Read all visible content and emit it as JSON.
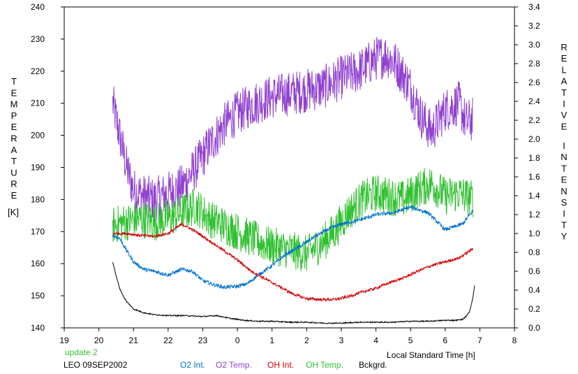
{
  "chart_data": {
    "type": "line",
    "left_axis_label": [
      "T",
      "E",
      "M",
      "P",
      "E",
      "R",
      "A",
      "T",
      "U",
      "R",
      "E"
    ],
    "left_axis_unit": "[K]",
    "right_axis_label_1": [
      "R",
      "E",
      "L",
      "A",
      "T",
      "I",
      "V",
      "E"
    ],
    "right_axis_label_2": [
      "I",
      "N",
      "T",
      "E",
      "N",
      "S",
      "I",
      "T",
      "Y"
    ],
    "xlabel": "Local Standard Time [h]",
    "update_text": "update 2",
    "station_text": "LEO 09SEP2002",
    "x_ticks": [
      "19",
      "20",
      "21",
      "22",
      "23",
      "0",
      "1",
      "2",
      "3",
      "4",
      "5",
      "6",
      "7",
      "8"
    ],
    "xlim": [
      19,
      32
    ],
    "y_left_ticks": [
      "140",
      "150",
      "160",
      "170",
      "180",
      "190",
      "200",
      "210",
      "220",
      "230",
      "240"
    ],
    "ylim_left": [
      140,
      240
    ],
    "y_right_ticks": [
      "0.0",
      "0.2",
      "0.4",
      "0.6",
      "0.8",
      "1.0",
      "1.2",
      "1.4",
      "1.6",
      "1.8",
      "2.0",
      "2.2",
      "2.4",
      "2.6",
      "2.8",
      "3.0",
      "3.2",
      "3.4"
    ],
    "ylim_right": [
      0,
      3.4
    ],
    "grid": false,
    "series": [
      {
        "name": "O2 Int.",
        "axis": "right",
        "color": "#0070d0",
        "noise": 0.02,
        "x": [
          20.4,
          20.6,
          20.8,
          21.0,
          21.3,
          21.6,
          22.0,
          22.4,
          22.7,
          23.0,
          23.3,
          23.6,
          24.0,
          24.3,
          24.6,
          25.0,
          25.4,
          25.8,
          26.2,
          26.6,
          27.0,
          27.5,
          28.0,
          28.5,
          29.0,
          29.5,
          30.0,
          30.5,
          30.8
        ],
        "values": [
          0.98,
          0.95,
          0.82,
          0.7,
          0.62,
          0.6,
          0.56,
          0.62,
          0.6,
          0.5,
          0.46,
          0.43,
          0.44,
          0.47,
          0.56,
          0.66,
          0.78,
          0.86,
          0.96,
          1.04,
          1.1,
          1.14,
          1.2,
          1.22,
          1.28,
          1.22,
          1.04,
          1.1,
          1.24
        ]
      },
      {
        "name": "O2 Temp.",
        "axis": "left",
        "color": "#9040d0",
        "noise": 7,
        "x": [
          20.4,
          20.6,
          20.8,
          21.0,
          21.3,
          21.6,
          22.0,
          22.4,
          22.8,
          23.2,
          23.6,
          24.0,
          24.5,
          25.0,
          25.5,
          26.0,
          26.5,
          27.0,
          27.5,
          28.0,
          28.3,
          28.6,
          29.0,
          29.3,
          29.6,
          30.0,
          30.4,
          30.6,
          30.8
        ],
        "values": [
          210,
          200,
          190,
          183,
          181,
          180,
          182,
          184,
          190,
          197,
          203,
          207,
          210,
          212,
          213,
          214,
          215,
          218,
          220,
          224,
          225,
          222,
          215,
          206,
          201,
          208,
          210,
          204,
          205
        ]
      },
      {
        "name": "OH Int.",
        "axis": "right",
        "color": "#d00000",
        "noise": 0.015,
        "x": [
          20.4,
          20.8,
          21.2,
          21.6,
          22.0,
          22.4,
          22.8,
          23.2,
          23.6,
          24.0,
          24.4,
          24.8,
          25.2,
          25.6,
          26.0,
          26.4,
          26.8,
          27.2,
          27.6,
          28.0,
          28.4,
          28.8,
          29.2,
          29.6,
          30.0,
          30.4,
          30.8
        ],
        "values": [
          1.0,
          1.0,
          0.98,
          0.97,
          1.0,
          1.1,
          1.02,
          0.92,
          0.82,
          0.72,
          0.6,
          0.52,
          0.44,
          0.36,
          0.31,
          0.3,
          0.3,
          0.33,
          0.38,
          0.42,
          0.48,
          0.53,
          0.6,
          0.66,
          0.7,
          0.74,
          0.84
        ]
      },
      {
        "name": "OH Temp.",
        "axis": "left",
        "color": "#30c030",
        "noise": 6,
        "x": [
          20.4,
          20.8,
          21.2,
          21.6,
          22.0,
          22.4,
          22.8,
          23.2,
          23.6,
          24.0,
          24.4,
          24.8,
          25.2,
          25.6,
          26.0,
          26.4,
          26.8,
          27.2,
          27.6,
          28.0,
          28.4,
          28.8,
          29.2,
          29.6,
          30.0,
          30.4,
          30.8
        ],
        "values": [
          172,
          173,
          174,
          173,
          174,
          176,
          178,
          174,
          172,
          170,
          168,
          166,
          165,
          164,
          163,
          166,
          170,
          176,
          180,
          182,
          181,
          180,
          183,
          185,
          181,
          182,
          180
        ]
      },
      {
        "name": "Bckgrd.",
        "axis": "right",
        "color": "#000000",
        "noise": 0.006,
        "x": [
          20.4,
          20.5,
          20.6,
          20.7,
          20.8,
          21.0,
          21.3,
          21.6,
          22.0,
          22.5,
          23.0,
          23.4,
          23.8,
          24.2,
          24.6,
          25.0,
          25.5,
          26.0,
          26.5,
          27.0,
          27.5,
          28.0,
          28.5,
          29.0,
          29.5,
          30.0,
          30.3,
          30.5,
          30.6,
          30.7,
          30.8,
          30.85
        ],
        "values": [
          0.7,
          0.55,
          0.42,
          0.34,
          0.28,
          0.2,
          0.16,
          0.14,
          0.13,
          0.13,
          0.12,
          0.13,
          0.1,
          0.08,
          0.07,
          0.07,
          0.06,
          0.06,
          0.05,
          0.05,
          0.06,
          0.06,
          0.06,
          0.07,
          0.07,
          0.08,
          0.08,
          0.09,
          0.12,
          0.17,
          0.32,
          0.45
        ]
      }
    ]
  }
}
